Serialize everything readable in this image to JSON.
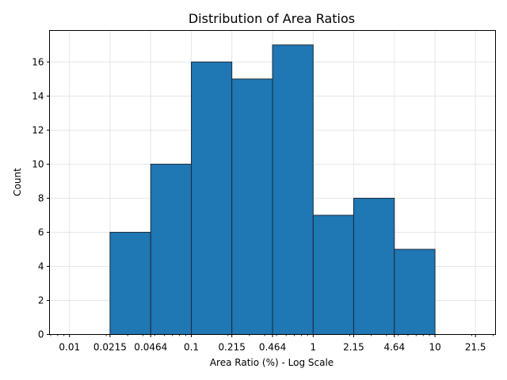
{
  "chart_data": {
    "type": "bar",
    "title": "Distribution of Area Ratios",
    "xlabel": "Area Ratio (%) - Log Scale",
    "ylabel": "Count",
    "x_scale": "log",
    "bin_edges": [
      0.01,
      0.0215,
      0.0464,
      0.1,
      0.215,
      0.464,
      1,
      2.15,
      4.64,
      10,
      21.5
    ],
    "counts": [
      0,
      6,
      10,
      16,
      15,
      17,
      7,
      8,
      5,
      0
    ],
    "xlim": [
      0.00685,
      31.4
    ],
    "ylim": [
      0,
      17.85
    ],
    "x_ticks": [
      "0.01",
      "0.0215",
      "0.0464",
      "0.1",
      "0.215",
      "0.464",
      "1",
      "2.15",
      "4.64",
      "10",
      "21.5"
    ],
    "y_ticks": [
      "0",
      "2",
      "4",
      "6",
      "8",
      "10",
      "12",
      "14",
      "16"
    ],
    "grid": true,
    "colors": {
      "bar": "#1f77b4",
      "edge": "#1a2a3a",
      "grid": "#e6e6e6"
    }
  }
}
